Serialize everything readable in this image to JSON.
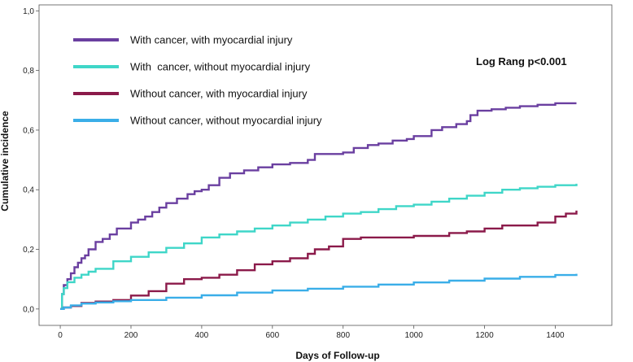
{
  "chart_data": {
    "type": "line",
    "title": "",
    "xlabel": "Days of Follow-up",
    "ylabel": "Cumulative incidence",
    "xlim": [
      -60,
      1560
    ],
    "ylim": [
      -0.055,
      1.02
    ],
    "xticks": [
      0,
      200,
      400,
      600,
      800,
      1000,
      1200,
      1400
    ],
    "xtick_labels": [
      "0",
      "200",
      "400",
      "600",
      "800",
      "1000",
      "1200",
      "1400"
    ],
    "yticks": [
      0,
      0.2,
      0.4,
      0.6,
      0.8,
      1.0
    ],
    "ytick_labels": [
      "0,0",
      "0,2",
      "0,4",
      "0,6",
      "0,8",
      "1,0"
    ],
    "grid": false,
    "legend_position": "top-left",
    "annotation": "Log Rang p<0.001",
    "series": [
      {
        "name": "With cancer, with myocardial injury",
        "color": "#6a3fa0",
        "x": [
          0,
          5,
          10,
          20,
          30,
          40,
          50,
          60,
          70,
          80,
          100,
          120,
          140,
          160,
          200,
          220,
          240,
          260,
          280,
          300,
          330,
          360,
          380,
          400,
          420,
          450,
          480,
          520,
          560,
          600,
          650,
          700,
          720,
          760,
          800,
          830,
          870,
          900,
          940,
          980,
          1000,
          1050,
          1080,
          1120,
          1150,
          1160,
          1180,
          1220,
          1260,
          1300,
          1350,
          1400,
          1460
        ],
        "y": [
          0,
          0.05,
          0.08,
          0.1,
          0.12,
          0.14,
          0.155,
          0.17,
          0.18,
          0.2,
          0.225,
          0.235,
          0.25,
          0.27,
          0.29,
          0.3,
          0.31,
          0.325,
          0.34,
          0.355,
          0.37,
          0.385,
          0.395,
          0.4,
          0.415,
          0.44,
          0.455,
          0.465,
          0.475,
          0.485,
          0.49,
          0.5,
          0.52,
          0.52,
          0.525,
          0.54,
          0.55,
          0.555,
          0.565,
          0.57,
          0.58,
          0.6,
          0.61,
          0.62,
          0.63,
          0.65,
          0.665,
          0.67,
          0.675,
          0.68,
          0.685,
          0.69,
          0.69
        ]
      },
      {
        "name": "With  cancer, without myocardial injury",
        "color": "#3fd6c8",
        "x": [
          0,
          5,
          10,
          20,
          40,
          60,
          80,
          100,
          150,
          200,
          250,
          300,
          350,
          400,
          450,
          500,
          550,
          600,
          650,
          700,
          750,
          800,
          850,
          900,
          950,
          1000,
          1050,
          1100,
          1150,
          1200,
          1250,
          1300,
          1350,
          1400,
          1460
        ],
        "y": [
          0,
          0.05,
          0.07,
          0.09,
          0.105,
          0.115,
          0.125,
          0.135,
          0.16,
          0.175,
          0.19,
          0.205,
          0.22,
          0.24,
          0.25,
          0.26,
          0.27,
          0.28,
          0.29,
          0.3,
          0.31,
          0.32,
          0.325,
          0.335,
          0.345,
          0.35,
          0.36,
          0.37,
          0.38,
          0.39,
          0.4,
          0.405,
          0.41,
          0.415,
          0.42
        ]
      },
      {
        "name": "Without cancer, with myocardial injury",
        "color": "#8b1a4a",
        "x": [
          0,
          10,
          30,
          60,
          100,
          150,
          200,
          250,
          300,
          350,
          400,
          450,
          500,
          550,
          600,
          650,
          700,
          720,
          760,
          800,
          850,
          900,
          1000,
          1100,
          1150,
          1200,
          1250,
          1300,
          1350,
          1400,
          1430,
          1460
        ],
        "y": [
          0,
          0.005,
          0.01,
          0.02,
          0.025,
          0.03,
          0.045,
          0.06,
          0.085,
          0.1,
          0.105,
          0.115,
          0.13,
          0.15,
          0.16,
          0.17,
          0.185,
          0.2,
          0.21,
          0.235,
          0.24,
          0.24,
          0.245,
          0.255,
          0.26,
          0.27,
          0.28,
          0.28,
          0.29,
          0.31,
          0.32,
          0.33
        ]
      },
      {
        "name": "Without cancer, without myocardial injury",
        "color": "#3aaee8",
        "x": [
          0,
          10,
          30,
          60,
          100,
          150,
          200,
          300,
          400,
          500,
          600,
          700,
          800,
          900,
          1000,
          1100,
          1200,
          1300,
          1400,
          1460
        ],
        "y": [
          0,
          0.005,
          0.012,
          0.018,
          0.022,
          0.026,
          0.03,
          0.038,
          0.046,
          0.055,
          0.062,
          0.068,
          0.075,
          0.082,
          0.089,
          0.095,
          0.102,
          0.108,
          0.114,
          0.118
        ]
      }
    ]
  }
}
